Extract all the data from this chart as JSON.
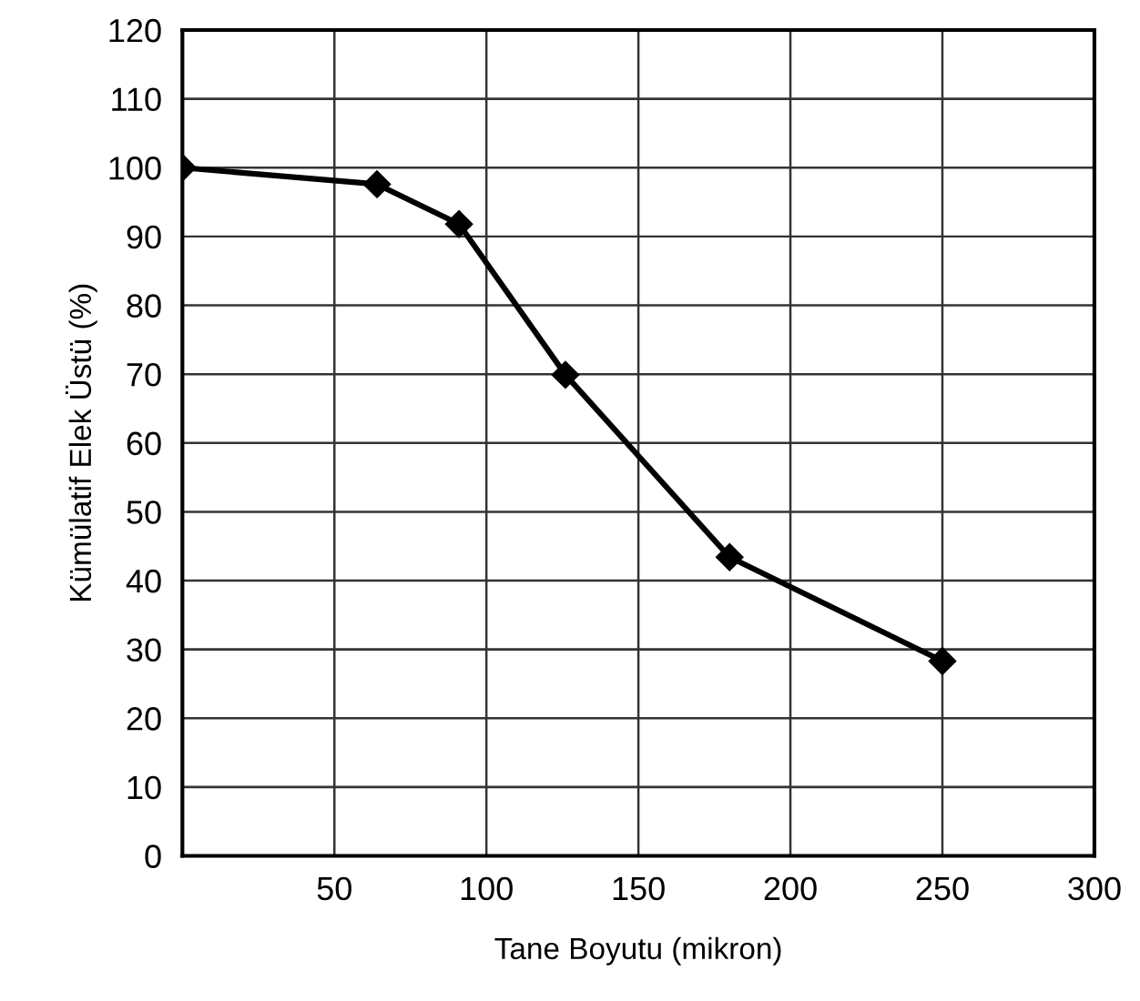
{
  "chart_data": {
    "type": "line",
    "xlabel": "Tane Boyutu (mikron)",
    "ylabel": "Kümülatif Elek Üstü (%)",
    "x": [
      0,
      64,
      91,
      126,
      180,
      250
    ],
    "series": [
      {
        "color": "#000000",
        "values": [
          100,
          97.6,
          91.8,
          69.9,
          43.4,
          28.3
        ]
      }
    ],
    "xlim": [
      0,
      300
    ],
    "xticks": [
      50,
      100,
      150,
      200,
      250,
      300
    ],
    "ylim": [
      0,
      120
    ],
    "yticks": [
      0,
      10,
      20,
      30,
      40,
      50,
      60,
      70,
      80,
      90,
      100,
      110,
      120
    ],
    "grid": true,
    "marker": "diamond",
    "line_style": "solid"
  }
}
